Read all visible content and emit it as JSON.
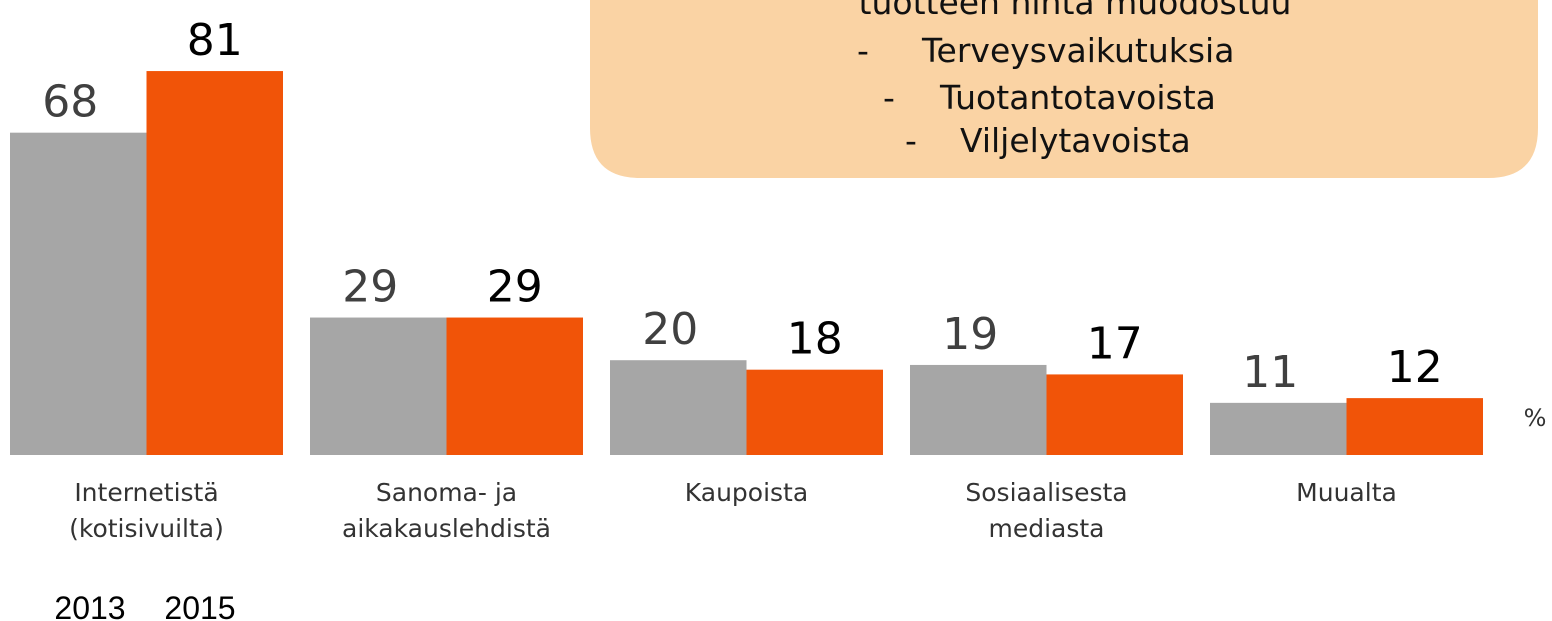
{
  "chart_data": {
    "type": "bar",
    "categories": [
      "Internetistä\n(kotisivuilta)",
      "Sanoma- ja\naikakauslehdistä",
      "Kaupoista",
      "Sosiaalisesta\nmediasta",
      "Muualta"
    ],
    "series": [
      {
        "name": "2013",
        "color": "#a6a6a6",
        "values": [
          68,
          29,
          20,
          19,
          11
        ]
      },
      {
        "name": "2015",
        "color": "#f15408",
        "values": [
          81,
          29,
          18,
          17,
          12
        ]
      }
    ],
    "unit_label": "%",
    "annotation": {
      "color": "#fad3a4",
      "lines": [
        "tuotteen hinta muodostuu",
        "- Terveysvaikutuksia",
        "- Tuotantotavoista",
        "- Viljelytavoista"
      ]
    }
  }
}
